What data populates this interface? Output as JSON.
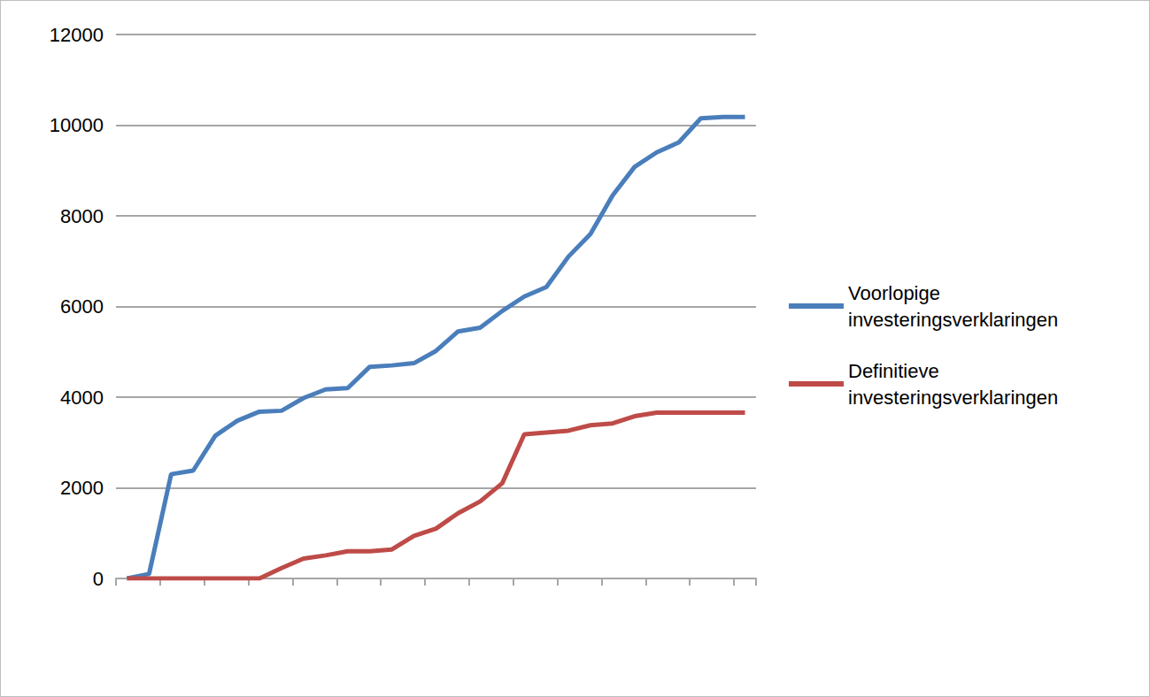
{
  "chart_data": {
    "type": "line",
    "categories": [
      null,
      null,
      null,
      null,
      null,
      null,
      null,
      null,
      null,
      null,
      null,
      null,
      null,
      null,
      null,
      null,
      null,
      null,
      null,
      null,
      null,
      null,
      null,
      null,
      null,
      null,
      null,
      null,
      null
    ],
    "series": [
      {
        "name": "Voorlopige investeringsverklaringen",
        "color": "#4a7ebb",
        "values": [
          0,
          100,
          2300,
          2380,
          3150,
          3480,
          3680,
          3700,
          3980,
          4170,
          4200,
          4670,
          4700,
          4750,
          5020,
          5450,
          5530,
          5900,
          6220,
          6430,
          7100,
          7600,
          8450,
          9080,
          9400,
          9620,
          10150,
          10180,
          10180
        ]
      },
      {
        "name": "Definitieve investeringsverklaringen",
        "color": "#be4b48",
        "values": [
          0,
          0,
          0,
          0,
          0,
          0,
          0,
          230,
          440,
          510,
          600,
          600,
          640,
          940,
          1100,
          1440,
          1700,
          2100,
          3180,
          3220,
          3260,
          3380,
          3420,
          3580,
          3660,
          3660,
          3660,
          3660,
          3660
        ]
      }
    ],
    "ylim": [
      0,
      12000
    ],
    "yticks": [
      0,
      2000,
      4000,
      6000,
      8000,
      10000,
      12000
    ],
    "grid": true,
    "legend": "right",
    "tick_labels": "y"
  }
}
